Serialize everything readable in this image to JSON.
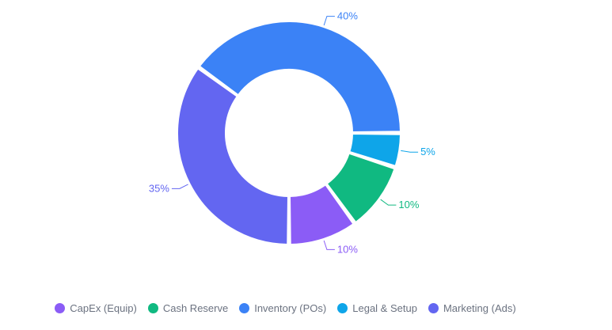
{
  "chart_data": {
    "type": "pie",
    "variant": "donut",
    "series": [
      {
        "name": "CapEx (Equip)",
        "value": 10,
        "label": "10%",
        "color": "#8b5cf6"
      },
      {
        "name": "Cash Reserve",
        "value": 10,
        "label": "10%",
        "color": "#10b981"
      },
      {
        "name": "Inventory (POs)",
        "value": 40,
        "label": "40%",
        "color": "#3b82f6"
      },
      {
        "name": "Legal & Setup",
        "value": 5,
        "label": "5%",
        "color": "#0ea5e9"
      },
      {
        "name": "Marketing (Ads)",
        "value": 35,
        "label": "35%",
        "color": "#6366f1"
      }
    ],
    "legend_position": "bottom"
  }
}
